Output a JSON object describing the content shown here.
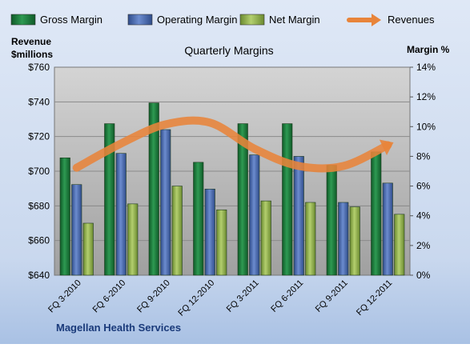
{
  "chart_data": {
    "type": "bar",
    "title": "Quarterly Margins",
    "company": "Magellan Health Services",
    "left_axis_label_line1": "Revenue",
    "left_axis_label_line2": "$millions",
    "right_axis_label": "Margin %",
    "categories": [
      "FQ 3-2010",
      "FQ 6-2010",
      "FQ 9-2010",
      "FQ 12-2010",
      "FQ 3-2011",
      "FQ 6-2011",
      "FQ 9-2011",
      "FQ 12-2011"
    ],
    "left_axis": {
      "min": 640,
      "max": 760,
      "ticks": [
        "$640",
        "$660",
        "$680",
        "$700",
        "$720",
        "$740",
        "$760"
      ]
    },
    "right_axis": {
      "min": 0,
      "max": 14,
      "ticks": [
        "0%",
        "2%",
        "4%",
        "6%",
        "8%",
        "10%",
        "12%",
        "14%"
      ]
    },
    "series": [
      {
        "name": "Gross Margin",
        "axis": "right",
        "color": "#1e7a3c",
        "values": [
          7.9,
          10.2,
          11.6,
          7.6,
          10.2,
          10.2,
          7.4,
          8.3
        ]
      },
      {
        "name": "Operating Margin",
        "axis": "right",
        "color": "#4a6bb0",
        "values": [
          6.1,
          8.2,
          9.8,
          5.8,
          8.1,
          8.0,
          4.9,
          6.2
        ]
      },
      {
        "name": "Net Margin",
        "axis": "right",
        "color": "#8fb04a",
        "values": [
          3.5,
          4.8,
          6.0,
          4.4,
          5.0,
          4.9,
          4.6,
          4.1
        ]
      },
      {
        "name": "Revenues",
        "axis": "left",
        "color": "#e8843a",
        "values": [
          702,
          716,
          727,
          728,
          713,
          703,
          703,
          715
        ]
      }
    ],
    "grid": true,
    "legend": "top"
  }
}
